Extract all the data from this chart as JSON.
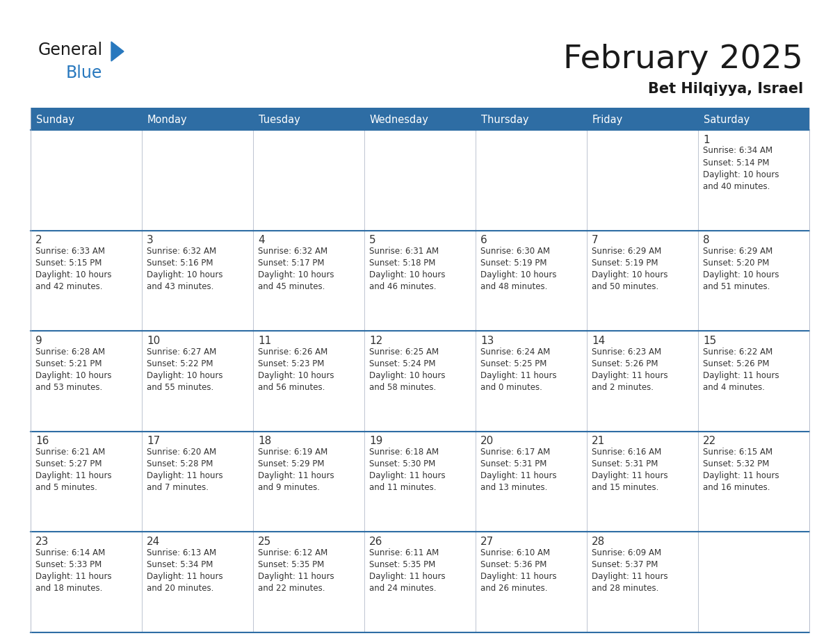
{
  "title": "February 2025",
  "subtitle": "Bet Hilqiyya, Israel",
  "days_of_week": [
    "Sunday",
    "Monday",
    "Tuesday",
    "Wednesday",
    "Thursday",
    "Friday",
    "Saturday"
  ],
  "header_bg": "#2E6DA4",
  "header_text": "#FFFFFF",
  "cell_bg": "#FFFFFF",
  "border_color": "#2E6DA4",
  "cell_border_color": "#B0B8C8",
  "text_color": "#333333",
  "title_color": "#1a1a1a",
  "logo_text_color": "#1a1a1a",
  "logo_blue_color": "#2878BE",
  "calendar": [
    [
      null,
      null,
      null,
      null,
      null,
      null,
      1
    ],
    [
      2,
      3,
      4,
      5,
      6,
      7,
      8
    ],
    [
      9,
      10,
      11,
      12,
      13,
      14,
      15
    ],
    [
      16,
      17,
      18,
      19,
      20,
      21,
      22
    ],
    [
      23,
      24,
      25,
      26,
      27,
      28,
      null
    ]
  ],
  "cell_data": {
    "1": {
      "sunrise": "6:34 AM",
      "sunset": "5:14 PM",
      "daylight_h": "10 hours",
      "daylight_m": "and 40 minutes."
    },
    "2": {
      "sunrise": "6:33 AM",
      "sunset": "5:15 PM",
      "daylight_h": "10 hours",
      "daylight_m": "and 42 minutes."
    },
    "3": {
      "sunrise": "6:32 AM",
      "sunset": "5:16 PM",
      "daylight_h": "10 hours",
      "daylight_m": "and 43 minutes."
    },
    "4": {
      "sunrise": "6:32 AM",
      "sunset": "5:17 PM",
      "daylight_h": "10 hours",
      "daylight_m": "and 45 minutes."
    },
    "5": {
      "sunrise": "6:31 AM",
      "sunset": "5:18 PM",
      "daylight_h": "10 hours",
      "daylight_m": "and 46 minutes."
    },
    "6": {
      "sunrise": "6:30 AM",
      "sunset": "5:19 PM",
      "daylight_h": "10 hours",
      "daylight_m": "and 48 minutes."
    },
    "7": {
      "sunrise": "6:29 AM",
      "sunset": "5:19 PM",
      "daylight_h": "10 hours",
      "daylight_m": "and 50 minutes."
    },
    "8": {
      "sunrise": "6:29 AM",
      "sunset": "5:20 PM",
      "daylight_h": "10 hours",
      "daylight_m": "and 51 minutes."
    },
    "9": {
      "sunrise": "6:28 AM",
      "sunset": "5:21 PM",
      "daylight_h": "10 hours",
      "daylight_m": "and 53 minutes."
    },
    "10": {
      "sunrise": "6:27 AM",
      "sunset": "5:22 PM",
      "daylight_h": "10 hours",
      "daylight_m": "and 55 minutes."
    },
    "11": {
      "sunrise": "6:26 AM",
      "sunset": "5:23 PM",
      "daylight_h": "10 hours",
      "daylight_m": "and 56 minutes."
    },
    "12": {
      "sunrise": "6:25 AM",
      "sunset": "5:24 PM",
      "daylight_h": "10 hours",
      "daylight_m": "and 58 minutes."
    },
    "13": {
      "sunrise": "6:24 AM",
      "sunset": "5:25 PM",
      "daylight_h": "11 hours",
      "daylight_m": "and 0 minutes."
    },
    "14": {
      "sunrise": "6:23 AM",
      "sunset": "5:26 PM",
      "daylight_h": "11 hours",
      "daylight_m": "and 2 minutes."
    },
    "15": {
      "sunrise": "6:22 AM",
      "sunset": "5:26 PM",
      "daylight_h": "11 hours",
      "daylight_m": "and 4 minutes."
    },
    "16": {
      "sunrise": "6:21 AM",
      "sunset": "5:27 PM",
      "daylight_h": "11 hours",
      "daylight_m": "and 5 minutes."
    },
    "17": {
      "sunrise": "6:20 AM",
      "sunset": "5:28 PM",
      "daylight_h": "11 hours",
      "daylight_m": "and 7 minutes."
    },
    "18": {
      "sunrise": "6:19 AM",
      "sunset": "5:29 PM",
      "daylight_h": "11 hours",
      "daylight_m": "and 9 minutes."
    },
    "19": {
      "sunrise": "6:18 AM",
      "sunset": "5:30 PM",
      "daylight_h": "11 hours",
      "daylight_m": "and 11 minutes."
    },
    "20": {
      "sunrise": "6:17 AM",
      "sunset": "5:31 PM",
      "daylight_h": "11 hours",
      "daylight_m": "and 13 minutes."
    },
    "21": {
      "sunrise": "6:16 AM",
      "sunset": "5:31 PM",
      "daylight_h": "11 hours",
      "daylight_m": "and 15 minutes."
    },
    "22": {
      "sunrise": "6:15 AM",
      "sunset": "5:32 PM",
      "daylight_h": "11 hours",
      "daylight_m": "and 16 minutes."
    },
    "23": {
      "sunrise": "6:14 AM",
      "sunset": "5:33 PM",
      "daylight_h": "11 hours",
      "daylight_m": "and 18 minutes."
    },
    "24": {
      "sunrise": "6:13 AM",
      "sunset": "5:34 PM",
      "daylight_h": "11 hours",
      "daylight_m": "and 20 minutes."
    },
    "25": {
      "sunrise": "6:12 AM",
      "sunset": "5:35 PM",
      "daylight_h": "11 hours",
      "daylight_m": "and 22 minutes."
    },
    "26": {
      "sunrise": "6:11 AM",
      "sunset": "5:35 PM",
      "daylight_h": "11 hours",
      "daylight_m": "and 24 minutes."
    },
    "27": {
      "sunrise": "6:10 AM",
      "sunset": "5:36 PM",
      "daylight_h": "11 hours",
      "daylight_m": "and 26 minutes."
    },
    "28": {
      "sunrise": "6:09 AM",
      "sunset": "5:37 PM",
      "daylight_h": "11 hours",
      "daylight_m": "and 28 minutes."
    }
  },
  "fig_width": 11.88,
  "fig_height": 9.18,
  "dpi": 100
}
